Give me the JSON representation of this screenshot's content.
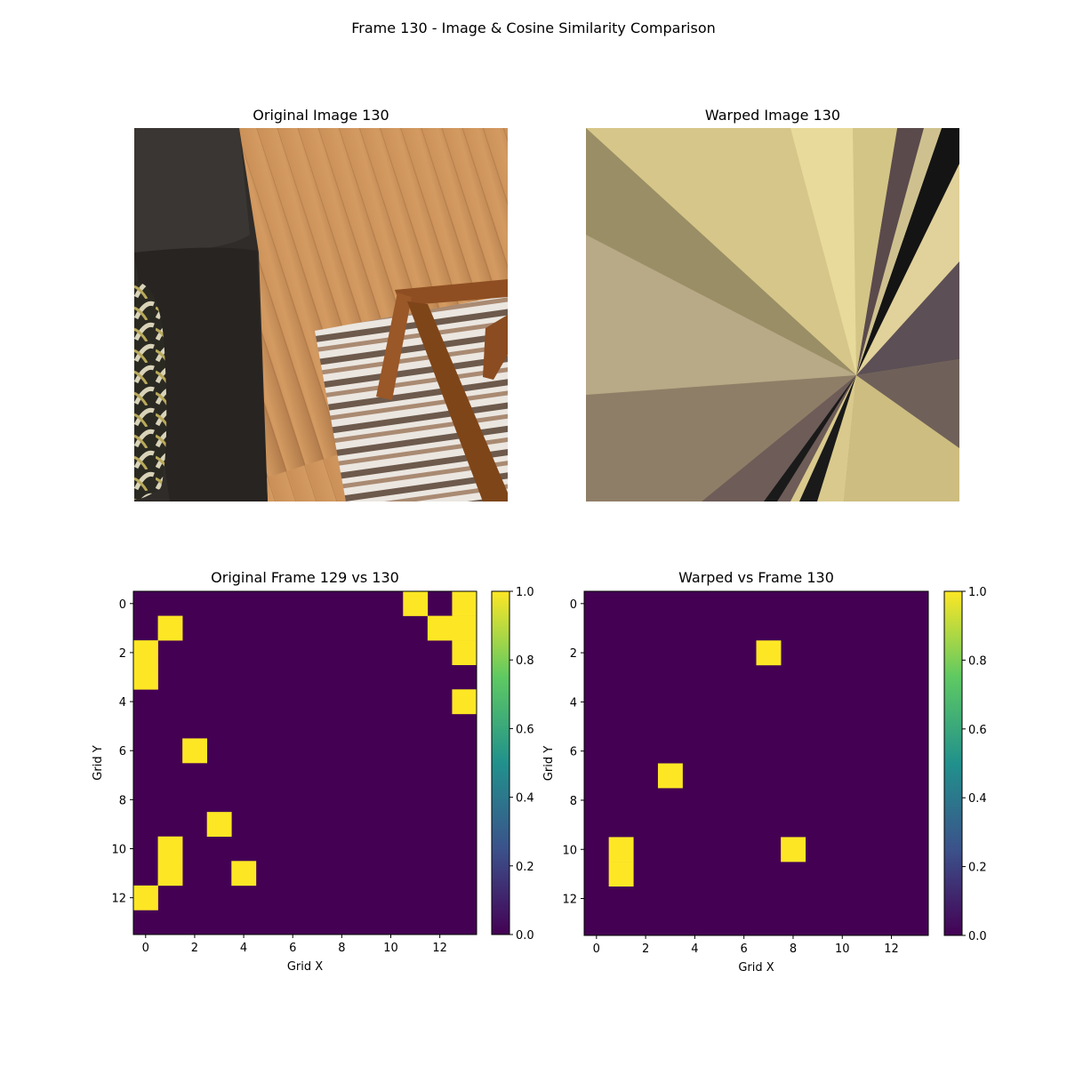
{
  "figure": {
    "title": "Frame 130 - Image & Cosine Similarity Comparison"
  },
  "panels": {
    "original_image": {
      "title": "Original Image 130"
    },
    "warped_image": {
      "title": "Warped Image 130"
    }
  },
  "chart_data": [
    {
      "type": "heatmap",
      "title": "Original Frame 129 vs 130",
      "xlabel": "Grid X",
      "ylabel": "Grid Y",
      "grid_size": [
        14,
        14
      ],
      "xticks": [
        0,
        2,
        4,
        6,
        8,
        10,
        12
      ],
      "yticks": [
        0,
        2,
        4,
        6,
        8,
        10,
        12
      ],
      "colorbar": {
        "range": [
          0.0,
          1.0
        ],
        "ticks": [
          "0.0",
          "0.2",
          "0.4",
          "0.6",
          "0.8",
          "1.0"
        ],
        "colormap": "viridis"
      },
      "value_default": 0,
      "high_cells": [
        [
          11,
          0
        ],
        [
          13,
          0
        ],
        [
          1,
          1
        ],
        [
          12,
          1
        ],
        [
          13,
          1
        ],
        [
          0,
          2
        ],
        [
          13,
          2
        ],
        [
          0,
          3
        ],
        [
          13,
          4
        ],
        [
          2,
          6
        ],
        [
          3,
          9
        ],
        [
          1,
          10
        ],
        [
          1,
          11
        ],
        [
          4,
          11
        ],
        [
          0,
          12
        ]
      ],
      "high_cells_format": "[x, y] cells with value 1.0"
    },
    {
      "type": "heatmap",
      "title": "Warped vs Frame 130",
      "xlabel": "Grid X",
      "ylabel": "Grid Y",
      "grid_size": [
        14,
        14
      ],
      "xticks": [
        0,
        2,
        4,
        6,
        8,
        10,
        12
      ],
      "yticks": [
        0,
        2,
        4,
        6,
        8,
        10,
        12
      ],
      "colorbar": {
        "range": [
          0.0,
          1.0
        ],
        "ticks": [
          "0.0",
          "0.2",
          "0.4",
          "0.6",
          "0.8",
          "1.0"
        ],
        "colormap": "viridis"
      },
      "value_default": 0,
      "high_cells": [
        [
          7,
          2
        ],
        [
          3,
          7
        ],
        [
          1,
          10
        ],
        [
          8,
          10
        ],
        [
          1,
          11
        ]
      ],
      "high_cells_format": "[x, y] cells with value 1.0"
    }
  ],
  "colors": {
    "low": "#440154",
    "high": "#fde725"
  }
}
